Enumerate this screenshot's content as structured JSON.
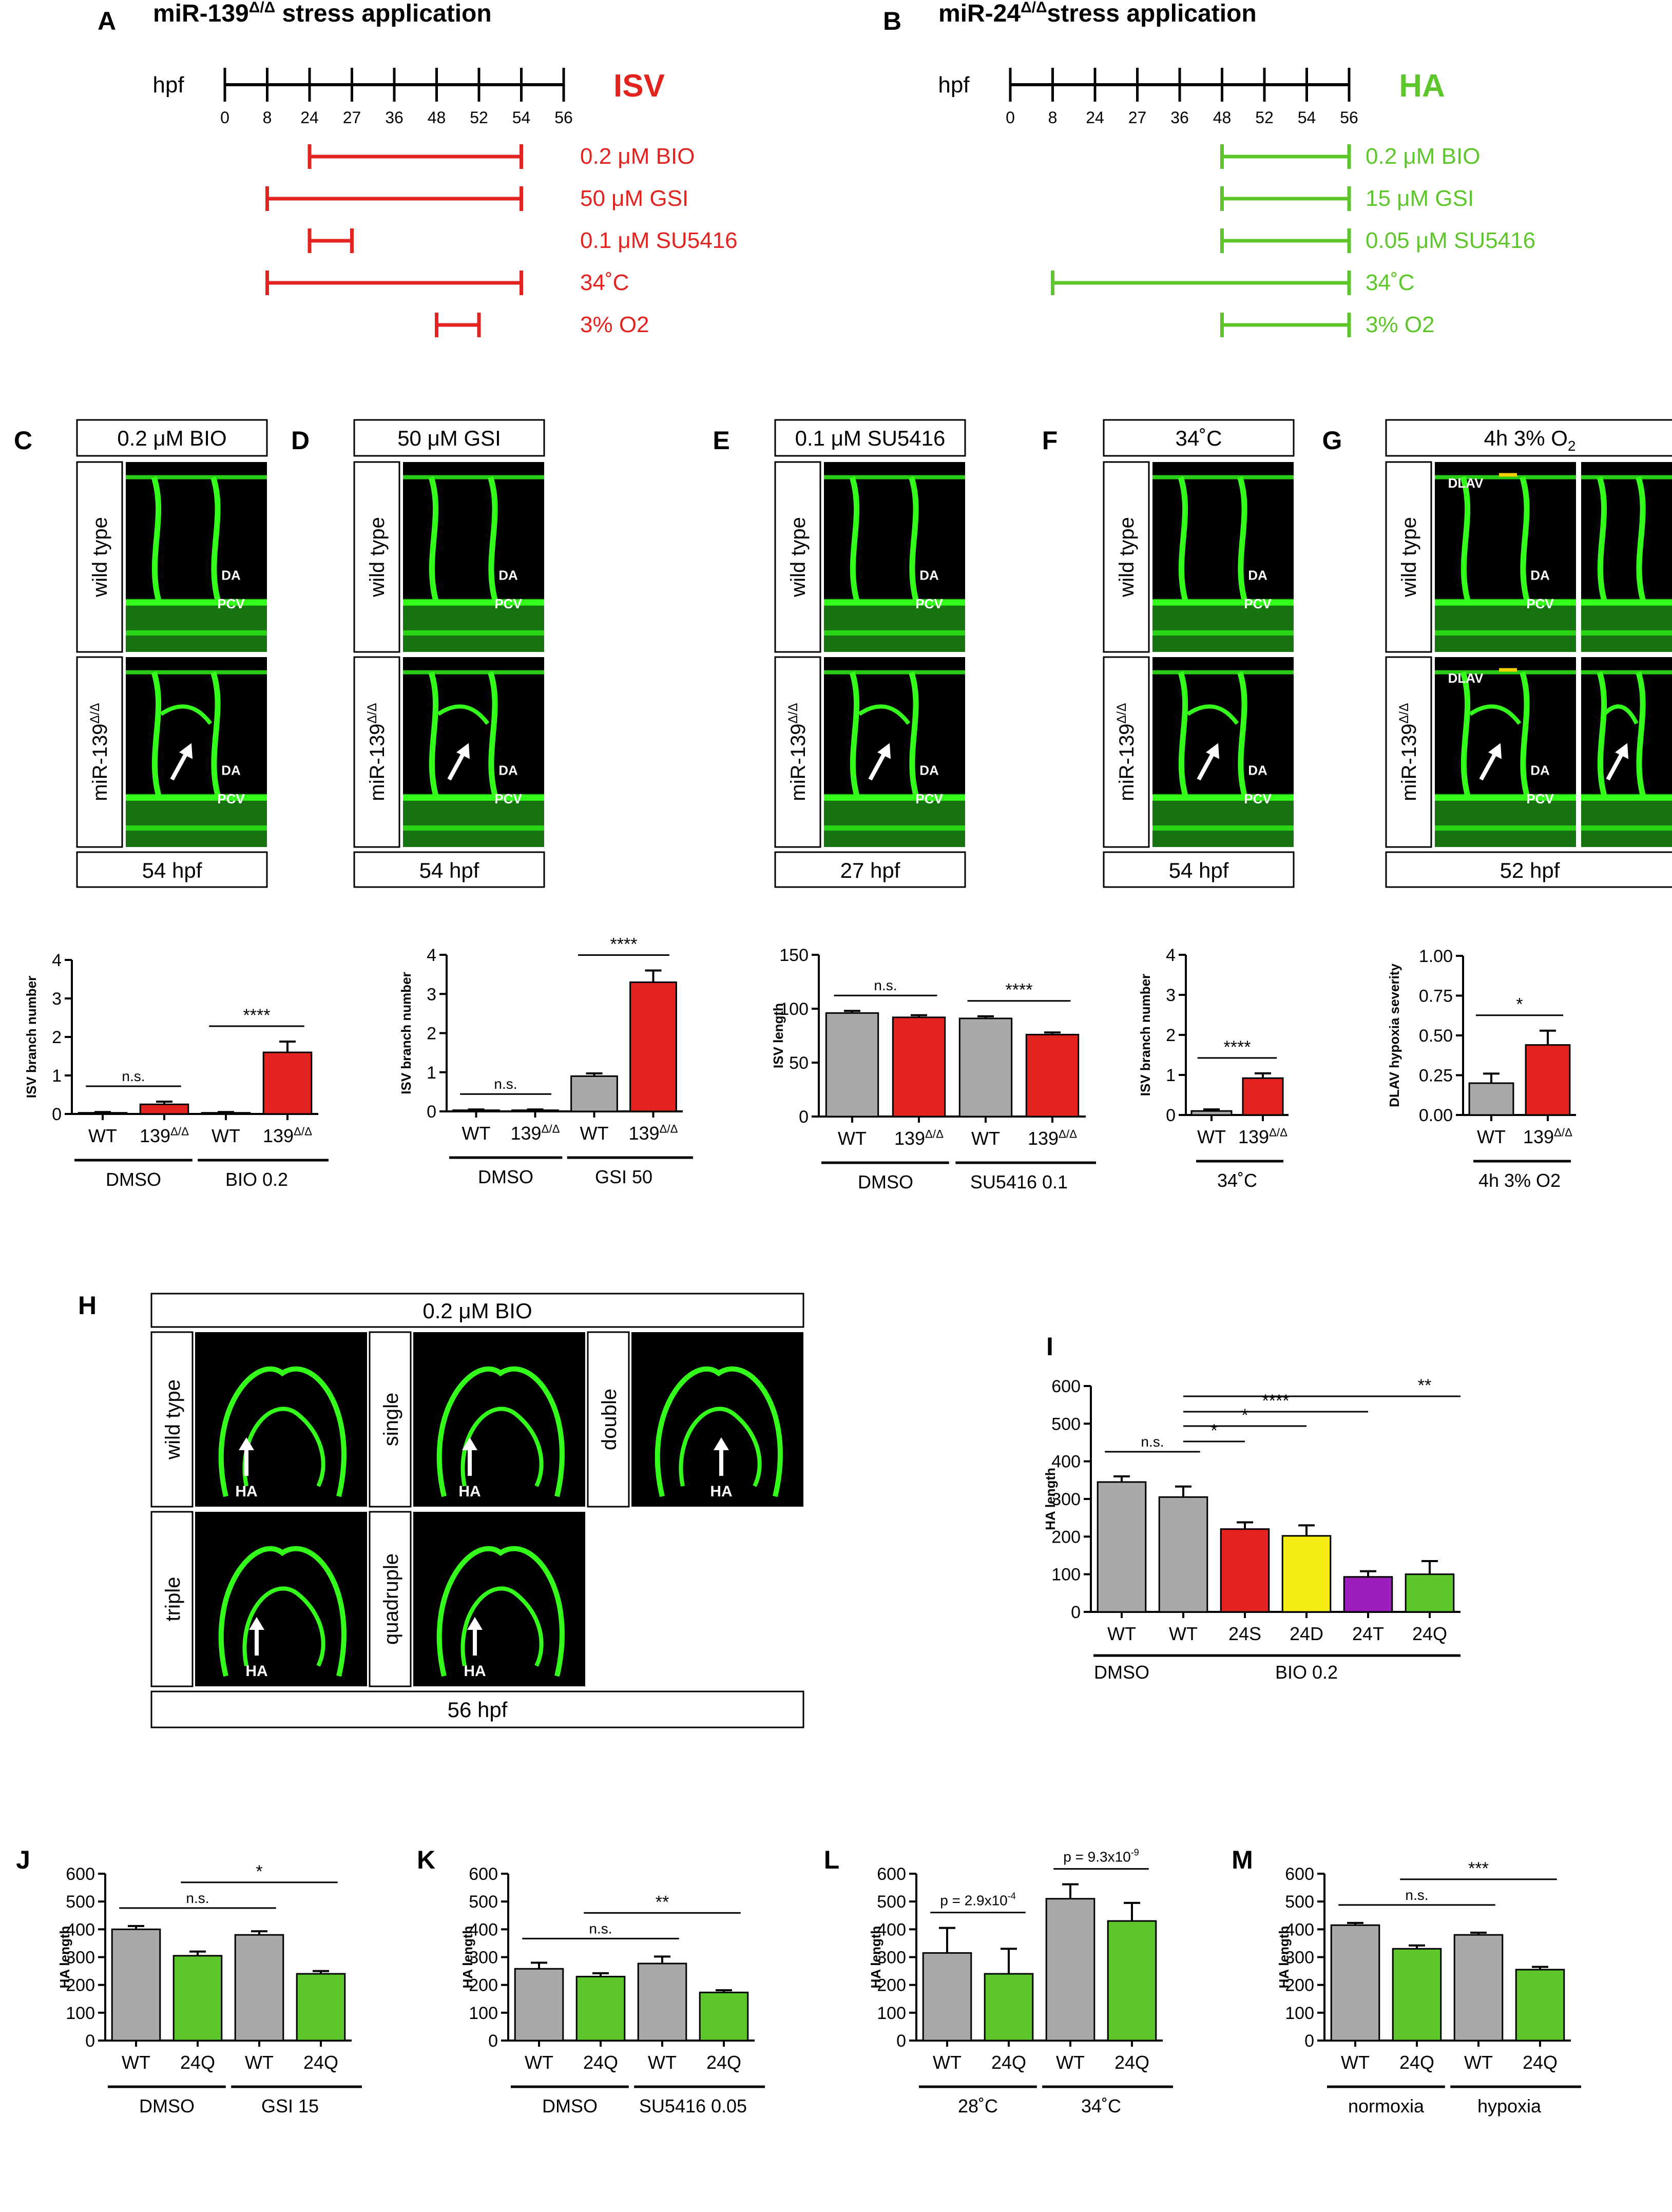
{
  "colors": {
    "red": "#e3231f",
    "green": "#5cc62a",
    "gray": "#a9a9a9",
    "yellow": "#f4ec12",
    "purple": "#9b1fbd",
    "black": "#000000",
    "micro_bg": "#000000",
    "vessel": "#33ff1a"
  },
  "panelA": {
    "letter": "A",
    "title_pre": "miR-139",
    "title_sup": "Δ/Δ",
    "title_post": " stress application",
    "hpf_label": "hpf",
    "ticks": [
      "0",
      "8",
      "24",
      "27",
      "36",
      "48",
      "52",
      "54",
      "56"
    ],
    "tag": "ISV",
    "treatments": [
      {
        "label": "0.2 μM BIO",
        "start": "24",
        "end": "54"
      },
      {
        "label": "50 μM GSI",
        "start": "8",
        "end": "54"
      },
      {
        "label": "0.1 μM SU5416",
        "start": "24",
        "end": "27"
      },
      {
        "label": "34˚C",
        "start": "8",
        "end": "54"
      },
      {
        "label": "3% O2",
        "start": "48",
        "end": "52"
      }
    ]
  },
  "panelB": {
    "letter": "B",
    "title_pre": "miR-24",
    "title_sup": "Δ/Δ",
    "title_post": "stress application",
    "hpf_label": "hpf",
    "ticks": [
      "0",
      "8",
      "24",
      "27",
      "36",
      "48",
      "52",
      "54",
      "56"
    ],
    "tag": "HA",
    "treatments": [
      {
        "label": "0.2 μM BIO",
        "start": "48",
        "end": "56"
      },
      {
        "label": "15 μM GSI",
        "start": "48",
        "end": "56"
      },
      {
        "label": "0.05 μM SU5416",
        "start": "48",
        "end": "56"
      },
      {
        "label": "34˚C",
        "start": "8",
        "end": "56"
      },
      {
        "label": "3% O2",
        "start": "48",
        "end": "56"
      }
    ]
  },
  "micro_panels": [
    {
      "letter": "C",
      "top": "0.2 μM BIO",
      "bottom": "54 hpf",
      "row1": "wild type",
      "row2": "miR-139",
      "sup": "Δ/Δ",
      "labels1": [
        "DA",
        "PCV"
      ],
      "labels2": [
        "DA",
        "PCV"
      ]
    },
    {
      "letter": "D",
      "top": "50 μM GSI",
      "bottom": "54 hpf",
      "row1": "wild type",
      "row2": "miR-139",
      "sup": "Δ/Δ",
      "labels1": [
        "DA",
        "PCV"
      ],
      "labels2": [
        "DA",
        "PCV"
      ]
    },
    {
      "letter": "E",
      "top": "0.1 μM SU5416",
      "bottom": "27 hpf",
      "row1": "wild type",
      "row2": "miR-139",
      "sup": "Δ/Δ",
      "labels1": [
        "DA",
        "PCV"
      ],
      "labels2": [
        "DA",
        "PCV"
      ]
    },
    {
      "letter": "F",
      "top": "34˚C",
      "bottom": "54 hpf",
      "row1": "wild type",
      "row2": "miR-139",
      "sup": "Δ/Δ",
      "labels1": [
        "DA",
        "PCV"
      ],
      "labels2": [
        "DA",
        "PCV"
      ]
    },
    {
      "letter": "G",
      "top_pre": "4h 3% O",
      "top_sub": "2",
      "bottom": "52 hpf",
      "row1": "wild type",
      "row2": "miR-139",
      "sup": "Δ/Δ",
      "labels1": [
        "DLAV",
        "DA",
        "PCV"
      ],
      "labels2": [
        "DLAV",
        "DA",
        "PCV"
      ]
    }
  ],
  "panelH": {
    "letter": "H",
    "top": "0.2 μM BIO",
    "bottom": "56 hpf",
    "genotypes": [
      "wild type",
      "single",
      "double",
      "triple",
      "quadruple"
    ],
    "arrow_label": "HA"
  },
  "chart_data": [
    {
      "id": "C",
      "type": "bar",
      "ylabel": "ISV branch number",
      "ylim": [
        0,
        4
      ],
      "yticks": [
        "0",
        "1",
        "2",
        "3",
        "4"
      ],
      "categories": [
        "WT",
        "139Δ/Δ",
        "WT",
        "139Δ/Δ"
      ],
      "values": [
        0.03,
        0.25,
        0.03,
        1.6
      ],
      "errors": [
        0.02,
        0.07,
        0.02,
        0.28
      ],
      "colors": [
        "gray",
        "red",
        "gray",
        "red"
      ],
      "groups": [
        "DMSO",
        "BIO 0.2"
      ],
      "sig": [
        {
          "text": "n.s.",
          "from": 0,
          "to": 1
        },
        {
          "text": "****",
          "from": 2,
          "to": 3
        }
      ]
    },
    {
      "id": "D",
      "type": "bar",
      "ylabel": "ISV branch number",
      "ylim": [
        0,
        4
      ],
      "yticks": [
        "0",
        "1",
        "2",
        "3",
        "4"
      ],
      "categories": [
        "WT",
        "139Δ/Δ",
        "WT",
        "139Δ/Δ"
      ],
      "values": [
        0.03,
        0.03,
        0.9,
        3.3
      ],
      "errors": [
        0.02,
        0.02,
        0.07,
        0.3
      ],
      "colors": [
        "gray",
        "red",
        "gray",
        "red"
      ],
      "groups": [
        "DMSO",
        "GSI 50"
      ],
      "sig": [
        {
          "text": "n.s.",
          "from": 0,
          "to": 1
        },
        {
          "text": "****",
          "from": 2,
          "to": 3
        }
      ]
    },
    {
      "id": "E",
      "type": "bar",
      "ylabel": "ISV length",
      "ylim": [
        0,
        150
      ],
      "yticks": [
        "0",
        "50",
        "100",
        "150"
      ],
      "categories": [
        "WT",
        "139Δ/Δ",
        "WT",
        "139Δ/Δ"
      ],
      "values": [
        96,
        92,
        91,
        76
      ],
      "errors": [
        2,
        2,
        2,
        2
      ],
      "colors": [
        "gray",
        "red",
        "gray",
        "red"
      ],
      "groups": [
        "DMSO",
        "SU5416 0.1"
      ],
      "sig": [
        {
          "text": "n.s.",
          "from": 0,
          "to": 1
        },
        {
          "text": "****",
          "from": 2,
          "to": 3
        }
      ]
    },
    {
      "id": "F",
      "type": "bar",
      "ylabel": "ISV branch number",
      "ylim": [
        0,
        4
      ],
      "yticks": [
        "0",
        "1",
        "2",
        "3",
        "4"
      ],
      "categories": [
        "WT",
        "139Δ/Δ"
      ],
      "values": [
        0.1,
        0.92
      ],
      "errors": [
        0.04,
        0.12
      ],
      "colors": [
        "gray",
        "red"
      ],
      "groups": [
        "34˚C"
      ],
      "sig": [
        {
          "text": "****",
          "from": 0,
          "to": 1
        }
      ]
    },
    {
      "id": "G",
      "type": "bar",
      "ylabel": "DLAV hypoxia severity",
      "ylim": [
        0,
        1
      ],
      "yticks": [
        "0.00",
        "0.25",
        "0.50",
        "0.75",
        "1.00"
      ],
      "categories": [
        "WT",
        "139Δ/Δ"
      ],
      "values": [
        0.2,
        0.44
      ],
      "errors": [
        0.06,
        0.09
      ],
      "colors": [
        "gray",
        "red"
      ],
      "groups": [
        "4h 3% O2"
      ],
      "sig": [
        {
          "text": "*",
          "from": 0,
          "to": 1
        }
      ]
    },
    {
      "id": "I",
      "type": "bar",
      "ylabel": "HA length",
      "ylim": [
        0,
        600
      ],
      "yticks": [
        "0",
        "100",
        "200",
        "300",
        "400",
        "500",
        "600"
      ],
      "categories": [
        "WT",
        "WT",
        "24S",
        "24D",
        "24T",
        "24Q"
      ],
      "values": [
        345,
        305,
        220,
        202,
        93,
        100
      ],
      "errors": [
        15,
        28,
        18,
        28,
        15,
        35
      ],
      "colors": [
        "gray",
        "gray",
        "red",
        "yellow",
        "purple",
        "green"
      ],
      "groups": [
        "DMSO",
        "BIO 0.2"
      ],
      "sig": [
        {
          "text": "n.s.",
          "from": 0,
          "to": 1
        },
        {
          "text": "*",
          "from": 1,
          "to": 2
        },
        {
          "text": "*",
          "from": 1,
          "to": 3
        },
        {
          "text": "****",
          "from": 1,
          "to": 4
        },
        {
          "text": "**",
          "from": 1,
          "to": 5
        }
      ]
    },
    {
      "id": "J",
      "type": "bar",
      "ylabel": "HA length",
      "ylim": [
        0,
        600
      ],
      "yticks": [
        "0",
        "100",
        "200",
        "300",
        "400",
        "500",
        "600"
      ],
      "categories": [
        "WT",
        "24Q",
        "WT",
        "24Q"
      ],
      "values": [
        400,
        305,
        380,
        240
      ],
      "errors": [
        12,
        15,
        13,
        10
      ],
      "colors": [
        "gray",
        "green",
        "gray",
        "green"
      ],
      "groups": [
        "DMSO",
        "GSI 15"
      ],
      "sig": [
        {
          "text": "n.s.",
          "from": 0,
          "to": 2
        },
        {
          "text": "*",
          "from": 1,
          "to": 3
        }
      ]
    },
    {
      "id": "K",
      "type": "bar",
      "ylabel": "HA length",
      "ylim": [
        0,
        600
      ],
      "yticks": [
        "0",
        "100",
        "200",
        "300",
        "400",
        "500",
        "600"
      ],
      "categories": [
        "WT",
        "24Q",
        "WT",
        "24Q"
      ],
      "values": [
        258,
        230,
        277,
        173
      ],
      "errors": [
        22,
        12,
        25,
        8
      ],
      "colors": [
        "gray",
        "green",
        "gray",
        "green"
      ],
      "groups": [
        "DMSO",
        "SU5416 0.05"
      ],
      "sig": [
        {
          "text": "n.s.",
          "from": 0,
          "to": 2
        },
        {
          "text": "**",
          "from": 1,
          "to": 3
        }
      ]
    },
    {
      "id": "L",
      "type": "bar",
      "ylabel": "HA length",
      "ylim": [
        0,
        600
      ],
      "yticks": [
        "0",
        "100",
        "200",
        "300",
        "400",
        "500",
        "600"
      ],
      "categories": [
        "WT",
        "24Q",
        "WT",
        "24Q"
      ],
      "values": [
        315,
        240,
        510,
        430
      ],
      "errors": [
        90,
        90,
        52,
        65
      ],
      "colors": [
        "gray",
        "green",
        "gray",
        "green"
      ],
      "groups": [
        "28˚C",
        "34˚C"
      ],
      "sig": [
        {
          "text": "p = 2.9x10-4",
          "from": 0,
          "to": 1
        },
        {
          "text": "p = 9.3x10-9",
          "from": 2,
          "to": 3
        }
      ]
    },
    {
      "id": "M",
      "type": "bar",
      "ylabel": "HA length",
      "ylim": [
        0,
        600
      ],
      "yticks": [
        "0",
        "100",
        "200",
        "300",
        "400",
        "500",
        "600"
      ],
      "categories": [
        "WT",
        "24Q",
        "WT",
        "24Q"
      ],
      "values": [
        415,
        330,
        380,
        255
      ],
      "errors": [
        8,
        12,
        8,
        10
      ],
      "colors": [
        "gray",
        "green",
        "gray",
        "green"
      ],
      "groups": [
        "normoxia",
        "hypoxia"
      ],
      "sig": [
        {
          "text": "n.s.",
          "from": 0,
          "to": 2
        },
        {
          "text": "***",
          "from": 1,
          "to": 3
        }
      ]
    }
  ]
}
